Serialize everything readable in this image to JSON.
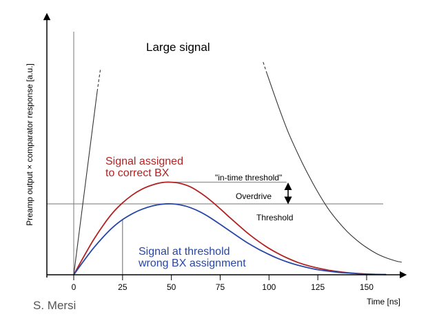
{
  "chart_data": {
    "type": "line",
    "title": "",
    "xlabel": "Time [ns]",
    "ylabel": "Preamp output × comparator response [a.u.]",
    "xlim": [
      -15,
      168
    ],
    "ylim": [
      0,
      108
    ],
    "x_ticks": [
      0,
      25,
      50,
      75,
      100,
      125,
      150
    ],
    "grid": false,
    "legend": "none",
    "series": [
      {
        "name": "Signal assigned to correct BX",
        "color": "#b22222",
        "points": [
          [
            0,
            0
          ],
          [
            5,
            9
          ],
          [
            10,
            17.5
          ],
          [
            15,
            25
          ],
          [
            20,
            31.5
          ],
          [
            25,
            36.5
          ],
          [
            30,
            40.5
          ],
          [
            35,
            43.5
          ],
          [
            40,
            45.5
          ],
          [
            45,
            46.8
          ],
          [
            50,
            47
          ],
          [
            55,
            46.3
          ],
          [
            60,
            44.5
          ],
          [
            65,
            41.5
          ],
          [
            70,
            37.8
          ],
          [
            75,
            33.5
          ],
          [
            80,
            29
          ],
          [
            85,
            24.6
          ],
          [
            90,
            20.4
          ],
          [
            95,
            16.7
          ],
          [
            100,
            13.4
          ],
          [
            105,
            10.6
          ],
          [
            110,
            8.2
          ],
          [
            115,
            6.2
          ],
          [
            120,
            4.6
          ],
          [
            125,
            3.4
          ],
          [
            130,
            2.4
          ],
          [
            135,
            1.7
          ],
          [
            140,
            1.1
          ],
          [
            145,
            0.7
          ],
          [
            150,
            0.4
          ],
          [
            155,
            0.2
          ],
          [
            160,
            0.1
          ]
        ]
      },
      {
        "name": "Signal at threshold wrong BX assignment",
        "color": "#2747a8",
        "points": [
          [
            0,
            0
          ],
          [
            5,
            6.9
          ],
          [
            10,
            13.4
          ],
          [
            15,
            19.1
          ],
          [
            20,
            24.1
          ],
          [
            25,
            28
          ],
          [
            30,
            31
          ],
          [
            35,
            33.3
          ],
          [
            40,
            34.9
          ],
          [
            45,
            35.8
          ],
          [
            50,
            36
          ],
          [
            55,
            35.4
          ],
          [
            60,
            34
          ],
          [
            65,
            31.8
          ],
          [
            70,
            28.9
          ],
          [
            75,
            25.6
          ],
          [
            80,
            22.2
          ],
          [
            85,
            18.8
          ],
          [
            90,
            15.6
          ],
          [
            95,
            12.8
          ],
          [
            100,
            10.3
          ],
          [
            105,
            8.1
          ],
          [
            110,
            6.3
          ],
          [
            115,
            4.8
          ],
          [
            120,
            3.6
          ],
          [
            125,
            2.6
          ],
          [
            130,
            1.9
          ],
          [
            135,
            1.3
          ],
          [
            140,
            0.9
          ],
          [
            145,
            0.6
          ],
          [
            150,
            0.3
          ],
          [
            155,
            0.2
          ],
          [
            160,
            0.1
          ]
        ]
      },
      {
        "name": "Large signal",
        "color": "#333333",
        "points": [
          [
            0,
            0
          ],
          [
            12,
            93
          ],
          [
            99,
            102
          ],
          [
            105,
            85
          ],
          [
            110,
            72
          ],
          [
            115,
            61
          ],
          [
            120,
            51
          ],
          [
            125,
            42
          ],
          [
            130,
            34
          ],
          [
            135,
            27.5
          ],
          [
            140,
            22
          ],
          [
            145,
            17.5
          ],
          [
            150,
            13.8
          ],
          [
            155,
            10.8
          ],
          [
            160,
            8.6
          ],
          [
            165,
            7
          ],
          [
            168,
            6.4
          ]
        ]
      }
    ],
    "threshold": 36,
    "in_time_threshold": 47,
    "annotations": {
      "large_signal": "Large signal",
      "correct_bx_line1": "Signal assigned",
      "correct_bx_line2": "to correct BX",
      "wrong_bx_line1": "Signal  at threshold",
      "wrong_bx_line2": "wrong BX assignment",
      "in_time_threshold": "\"in-time threshold\"",
      "overdrive": "Overdrive",
      "threshold": "Threshold",
      "credit": "S. Mersi"
    }
  }
}
